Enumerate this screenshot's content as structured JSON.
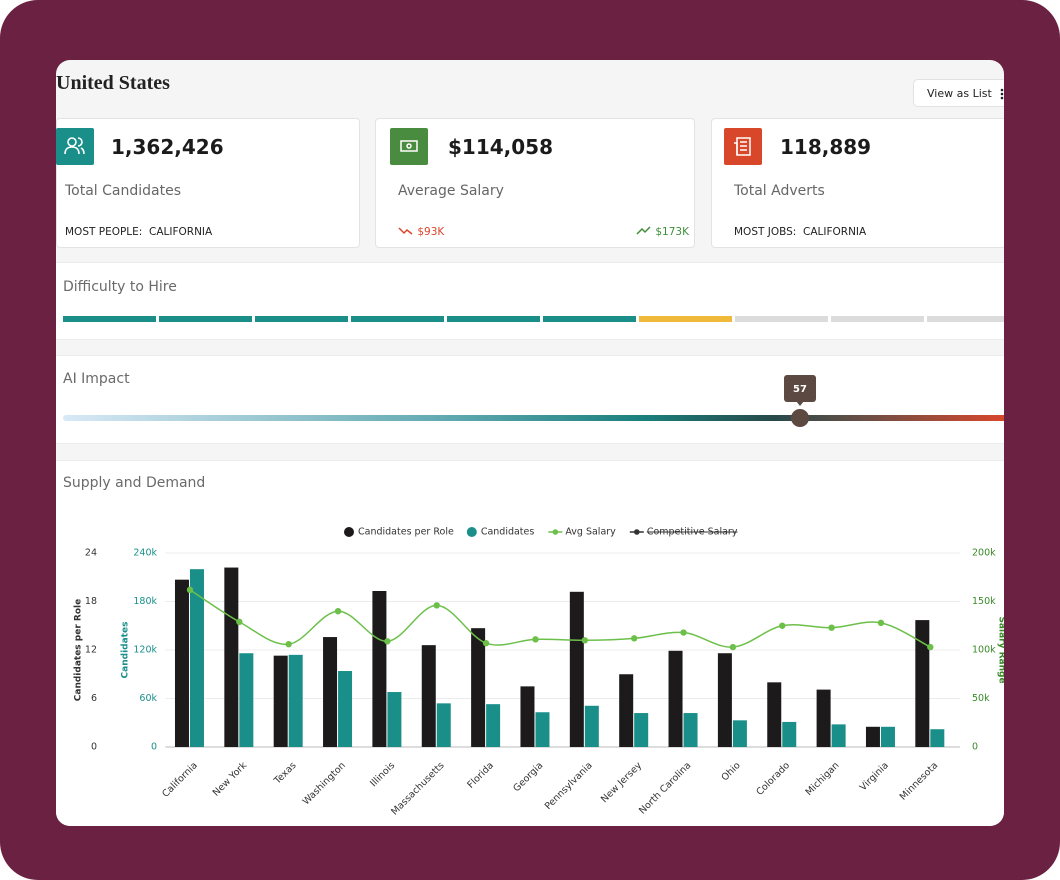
{
  "header": {
    "title": "United States",
    "button": "View as List"
  },
  "cards": [
    {
      "value": "1,362,426",
      "label": "Total Candidates",
      "footer_label": "MOST PEOPLE:",
      "footer_value": "CALIFORNIA",
      "color": "#1a8f8a"
    },
    {
      "value": "$114,058",
      "label": "Average Salary",
      "low": "$93K",
      "high": "$173K",
      "color": "#4a8c3f"
    },
    {
      "value": "118,889",
      "label": "Total Adverts",
      "footer_label": "MOST JOBS:",
      "footer_value": "CALIFORNIA",
      "color": "#d9472b"
    }
  ],
  "difficulty": {
    "title": "Difficulty to Hire",
    "segment_colors": [
      "#1a8f8a",
      "#1a8f8a",
      "#1a8f8a",
      "#1a8f8a",
      "#1a8f8a",
      "#1a8f8a",
      "#f0b93a",
      "#dcdcdc",
      "#dcdcdc",
      "#dcdcdc"
    ]
  },
  "ai_impact": {
    "title": "AI Impact",
    "value": 57,
    "range": [
      0,
      100
    ]
  },
  "chart_data": {
    "type": "bar",
    "title": "Supply and Demand",
    "y_label": "Candidates per Role",
    "y2_label": "Candidates",
    "y3_label": "Salary Range",
    "categories": [
      "California",
      "New York",
      "Texas",
      "Washington",
      "Illinois",
      "Massachusetts",
      "Florida",
      "Georgia",
      "Pennsylvania",
      "New Jersey",
      "North Carolina",
      "Ohio",
      "Colorado",
      "Michigan",
      "Virginia",
      "Minnesota"
    ],
    "series": [
      {
        "name": "Candidates per Role",
        "type": "bar",
        "color": "#1c1a1a",
        "axis": "y",
        "values": [
          20.7,
          22.2,
          11.3,
          13.6,
          19.3,
          12.6,
          14.7,
          7.5,
          19.2,
          9.0,
          11.9,
          11.6,
          8.0,
          7.1,
          2.5,
          15.7
        ]
      },
      {
        "name": "Candidates",
        "type": "bar",
        "color": "#1a8f8a",
        "axis": "y2",
        "values": [
          220000,
          116000,
          114000,
          94000,
          68000,
          54000,
          53000,
          43000,
          51000,
          42000,
          42000,
          33000,
          31000,
          28000,
          25000,
          22000
        ]
      },
      {
        "name": "Avg Salary",
        "type": "line",
        "color": "#6cc04a",
        "axis": "y3",
        "values": [
          162000,
          129000,
          106000,
          140000,
          109000,
          146000,
          107000,
          111000,
          110000,
          112000,
          118000,
          103000,
          125000,
          123000,
          128000,
          103000
        ]
      },
      {
        "name": "Competitive Salary",
        "type": "line",
        "color": "#333333",
        "axis": "y3",
        "hidden": true
      }
    ],
    "ylim": [
      0,
      24
    ],
    "yticks": [
      0,
      6,
      12,
      18,
      24
    ],
    "y2lim": [
      0,
      240000
    ],
    "y2ticks": [
      0,
      {
        "value": 60000,
        "label": "60k"
      },
      {
        "value": 120000,
        "label": "120k"
      },
      {
        "value": 180000,
        "label": "180k"
      },
      {
        "value": 240000,
        "label": "240k"
      }
    ],
    "y3lim": [
      0,
      200000
    ],
    "y3ticks": [
      0,
      {
        "value": 50000,
        "label": "50k"
      },
      {
        "value": 100000,
        "label": "100k"
      },
      {
        "value": 150000,
        "label": "150k"
      },
      {
        "value": 200000,
        "label": "200k"
      }
    ],
    "grid": true,
    "legend": "top"
  }
}
